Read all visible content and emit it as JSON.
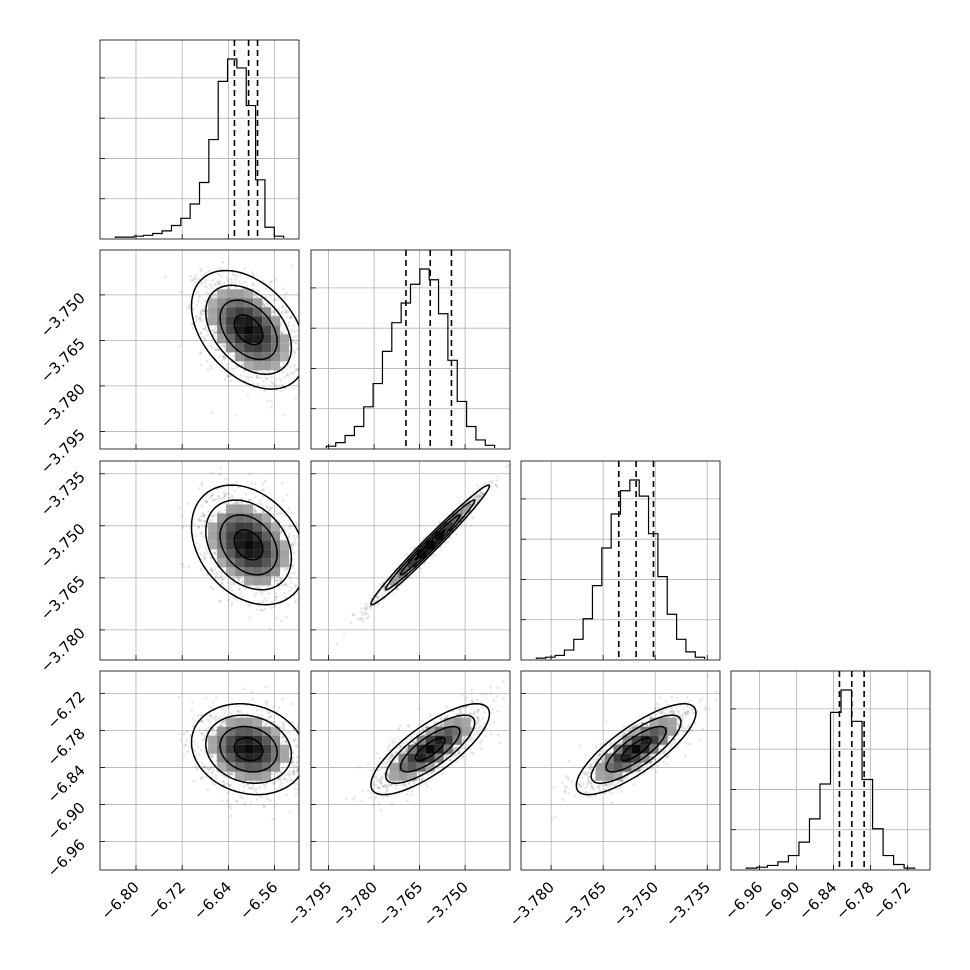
{
  "chart_data": {
    "type": "corner",
    "n_params": 4,
    "grid": true,
    "diag_labels": [
      [
        "-6.80",
        "-6.72",
        "-6.64",
        "-6.56"
      ],
      [
        "-3.795",
        "-3.780",
        "-3.765",
        "-3.750"
      ],
      [
        "-3.780",
        "-3.765",
        "-3.750",
        "-3.735"
      ],
      [
        "-6.96",
        "-6.90",
        "-6.84",
        "-6.78",
        "-6.72"
      ]
    ],
    "y_labels": [
      null,
      [
        "-3.750",
        "-3.765",
        "-3.780",
        "-3.795"
      ],
      [
        "-3.735",
        "-3.750",
        "-3.765",
        "-3.780"
      ],
      [
        "-6.72",
        "-6.78",
        "-6.84",
        "-6.90",
        "-6.96"
      ]
    ],
    "params": [
      {
        "range": [
          -6.845,
          -6.535
        ],
        "ticks": [
          -6.8,
          -6.72,
          -6.64,
          -6.56
        ],
        "tick_labels": [
          "−6.80",
          "−6.72",
          "−6.64",
          "−6.56"
        ],
        "quantiles": [
          -6.6295,
          -6.605,
          -6.5895
        ]
      },
      {
        "range": [
          -3.7975,
          -3.7385
        ],
        "ticks": [
          -3.795,
          -3.78,
          -3.765,
          -3.75
        ],
        "tick_labels": [
          "−3.795",
          "−3.780",
          "−3.765",
          "−3.750"
        ],
        "quantiles": [
          -3.7695,
          -3.7615,
          -3.7545
        ]
      },
      {
        "range": [
          -3.7858,
          -3.7342
        ],
        "ticks": [
          -3.78,
          -3.765,
          -3.75,
          -3.735
        ],
        "tick_labels": [
          "−3.780",
          "−3.765",
          "−3.750",
          "−3.735"
        ],
        "quantiles": [
          -3.7605,
          -3.7555,
          -3.7505
        ]
      },
      {
        "range": [
          -6.99,
          -6.7
        ],
        "ticks": [
          -6.96,
          -6.9,
          -6.84,
          -6.78,
          -6.72
        ],
        "tick_labels": [
          "−6.96",
          "−6.90",
          "−6.84",
          "−6.78",
          "−6.72"
        ],
        "quantiles": [
          -6.8305,
          -6.8105,
          -6.7905
        ]
      }
    ],
    "histograms": [
      {
        "counts": [
          1,
          1,
          2,
          3,
          5,
          8,
          14,
          22,
          38,
          62,
          110,
          175,
          200,
          190,
          148,
          65,
          12,
          2
        ]
      },
      {
        "counts": [
          2,
          6,
          14,
          24,
          46,
          72,
          108,
          140,
          162,
          183,
          200,
          188,
          150,
          98,
          52,
          24,
          9,
          3
        ]
      },
      {
        "counts": [
          1,
          2,
          4,
          10,
          22,
          45,
          82,
          124,
          162,
          188,
          200,
          182,
          140,
          92,
          50,
          22,
          8,
          2
        ]
      },
      {
        "counts": [
          1,
          2,
          4,
          8,
          15,
          30,
          56,
          95,
          175,
          200,
          165,
          100,
          45,
          15,
          5,
          1
        ]
      }
    ],
    "pairs": [
      {
        "row": 1,
        "col": 0,
        "center": [
          -6.605,
          -3.7615
        ],
        "sd": [
          0.043,
          0.0085
        ],
        "rho": -0.4,
        "skew_x": -0.6
      },
      {
        "row": 2,
        "col": 0,
        "center": [
          -6.605,
          -3.7555
        ],
        "sd": [
          0.043,
          0.0075
        ],
        "rho": -0.3,
        "skew_x": -0.6
      },
      {
        "row": 2,
        "col": 1,
        "center": [
          -3.7615,
          -3.7555
        ],
        "sd": [
          0.0085,
          0.0075
        ],
        "rho": 0.985,
        "skew_x": 0
      },
      {
        "row": 3,
        "col": 0,
        "center": [
          -6.605,
          -6.8105
        ],
        "sd": [
          0.043,
          0.032
        ],
        "rho": -0.15,
        "skew_x": -0.6
      },
      {
        "row": 3,
        "col": 1,
        "center": [
          -3.7615,
          -6.8105
        ],
        "sd": [
          0.0085,
          0.032
        ],
        "rho": 0.78,
        "skew_x": 0
      },
      {
        "row": 3,
        "col": 2,
        "center": [
          -3.7555,
          -6.8105
        ],
        "sd": [
          0.0075,
          0.032
        ],
        "rho": 0.8,
        "skew_x": 0
      }
    ],
    "contour_sigmas": [
      0.5,
      1.0,
      1.5,
      2.0
    ]
  }
}
